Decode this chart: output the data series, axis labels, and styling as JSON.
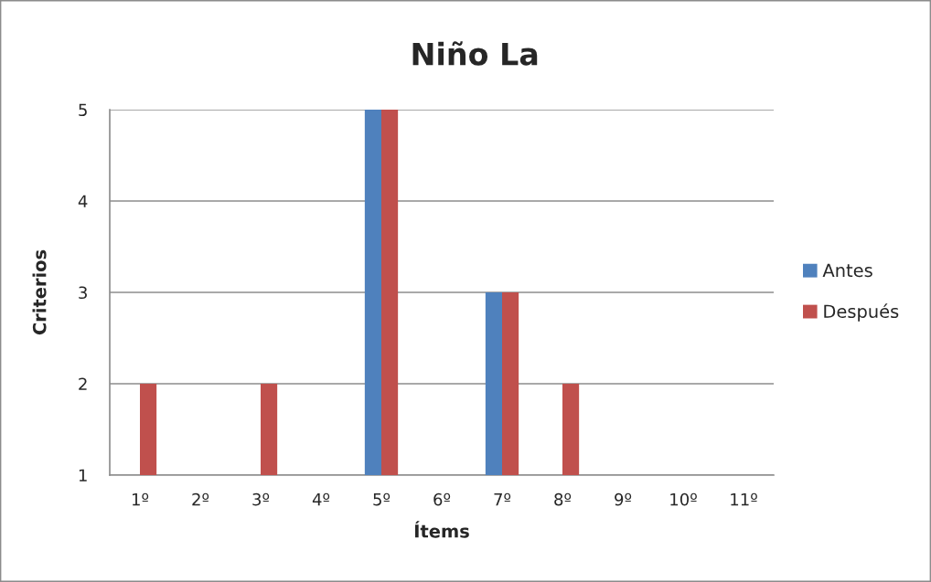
{
  "chart_data": {
    "type": "bar",
    "title": "Niño La",
    "xlabel": "Ítems",
    "ylabel": "Criterios",
    "categories": [
      "1º",
      "2º",
      "3º",
      "4º",
      "5º",
      "6º",
      "7º",
      "8º",
      "9º",
      "10º",
      "11º"
    ],
    "series": [
      {
        "name": "Antes",
        "color": "#4f81bd",
        "values": [
          null,
          null,
          null,
          null,
          5,
          null,
          3,
          null,
          null,
          null,
          null
        ]
      },
      {
        "name": "Después",
        "color": "#c0504d",
        "values": [
          2,
          null,
          2,
          null,
          5,
          null,
          3,
          2,
          null,
          null,
          null
        ]
      }
    ],
    "ylim": [
      1,
      5
    ],
    "yticks": [
      1,
      2,
      3,
      4,
      5
    ],
    "grid": "y",
    "legend": "right"
  }
}
